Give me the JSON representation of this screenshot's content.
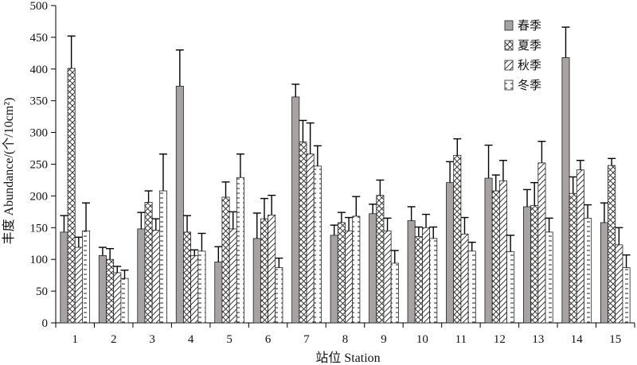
{
  "chart_data": {
    "type": "bar",
    "xlabel": "站位 Station",
    "ylabel": "丰度 Abundance/(个/10cm²)",
    "ylim": [
      0,
      500
    ],
    "yticks": [
      0,
      50,
      100,
      150,
      200,
      250,
      300,
      350,
      400,
      450,
      500
    ],
    "categories": [
      "1",
      "2",
      "3",
      "4",
      "5",
      "6",
      "7",
      "8",
      "9",
      "10",
      "11",
      "12",
      "13",
      "14",
      "15"
    ],
    "grid": false,
    "legend_position": "top-right",
    "series": [
      {
        "name": "春季",
        "pattern": "solid-gray",
        "color": "#a7a3a3",
        "values": [
          143,
          106,
          148,
          373,
          96,
          133,
          356,
          138,
          172,
          161,
          221,
          228,
          183,
          418,
          158
        ],
        "errors": [
          26,
          13,
          26,
          57,
          24,
          40,
          20,
          16,
          15,
          22,
          33,
          52,
          27,
          48,
          31
        ]
      },
      {
        "name": "夏季",
        "pattern": "cross-hatch",
        "color": "#ffffff",
        "values": [
          401,
          100,
          190,
          143,
          198,
          164,
          285,
          158,
          201,
          136,
          264,
          208,
          185,
          204,
          248
        ],
        "errors": [
          51,
          17,
          18,
          26,
          24,
          32,
          34,
          16,
          24,
          15,
          26,
          25,
          36,
          26,
          11
        ]
      },
      {
        "name": "秋季",
        "pattern": "diagonal-hatch",
        "color": "#ffffff",
        "values": [
          119,
          79,
          146,
          106,
          148,
          170,
          266,
          145,
          145,
          150,
          140,
          224,
          252,
          241,
          123
        ],
        "errors": [
          16,
          10,
          18,
          9,
          27,
          31,
          49,
          21,
          20,
          21,
          26,
          32,
          34,
          15,
          27
        ]
      },
      {
        "name": "冬季",
        "pattern": "horizontal-dash",
        "color": "#ffffff",
        "values": [
          145,
          70,
          208,
          113,
          229,
          87,
          247,
          168,
          94,
          133,
          113,
          112,
          143,
          165,
          87
        ],
        "errors": [
          44,
          13,
          58,
          28,
          37,
          15,
          32,
          31,
          20,
          18,
          14,
          26,
          22,
          21,
          20
        ]
      }
    ]
  }
}
